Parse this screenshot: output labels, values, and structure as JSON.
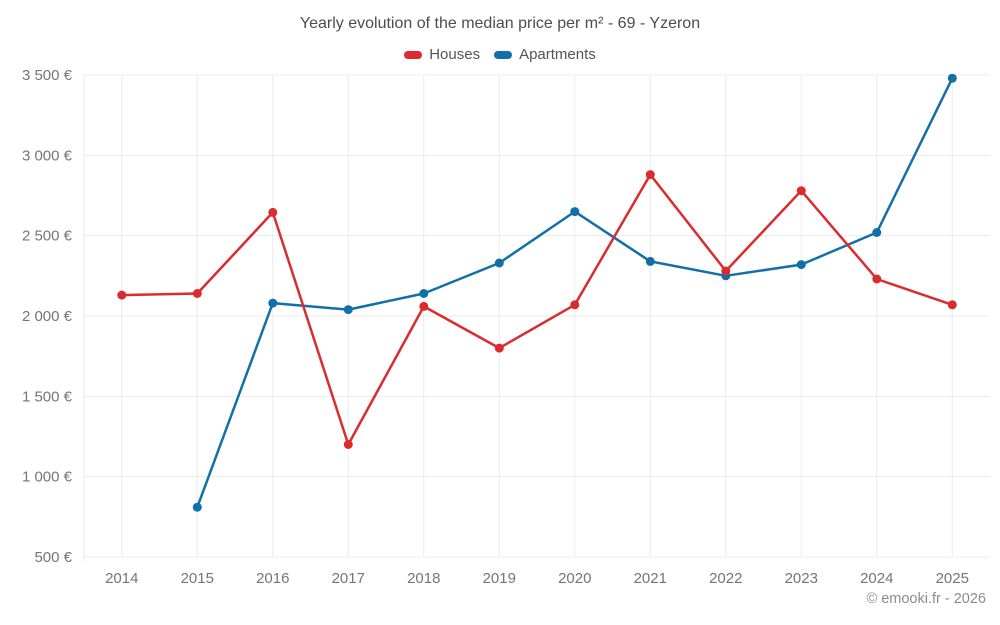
{
  "page": {
    "footer": "© emooki.fr - 2026"
  },
  "chart_data": {
    "type": "line",
    "title": "Yearly evolution of the median price per m² - 69 - Yzeron",
    "categories": [
      "2014",
      "2015",
      "2016",
      "2017",
      "2018",
      "2019",
      "2020",
      "2021",
      "2022",
      "2023",
      "2024",
      "2025"
    ],
    "series": [
      {
        "name": "Houses",
        "color": "#da2c2e",
        "values": [
          2130,
          2140,
          2645,
          1200,
          2060,
          1800,
          2070,
          2880,
          2280,
          2780,
          2230,
          2070
        ]
      },
      {
        "name": "Apartments",
        "color": "#1170a8",
        "values": [
          null,
          810,
          2080,
          2040,
          2140,
          2330,
          2650,
          2340,
          2250,
          2320,
          2520,
          3480
        ]
      }
    ],
    "xlabel": "",
    "ylabel": "",
    "ylim": [
      500,
      3500
    ],
    "ytick_step": 500,
    "ytick_labels": [
      "500 €",
      "1 000 €",
      "1 500 €",
      "2 000 €",
      "2 500 €",
      "3 000 €",
      "3 500 €"
    ],
    "grid": true,
    "legend_position": "top",
    "background_color": "#ffffff",
    "grid_color": "#ebebeb",
    "axis_text_color": "#757575",
    "title_color": "#4c4c4c"
  }
}
